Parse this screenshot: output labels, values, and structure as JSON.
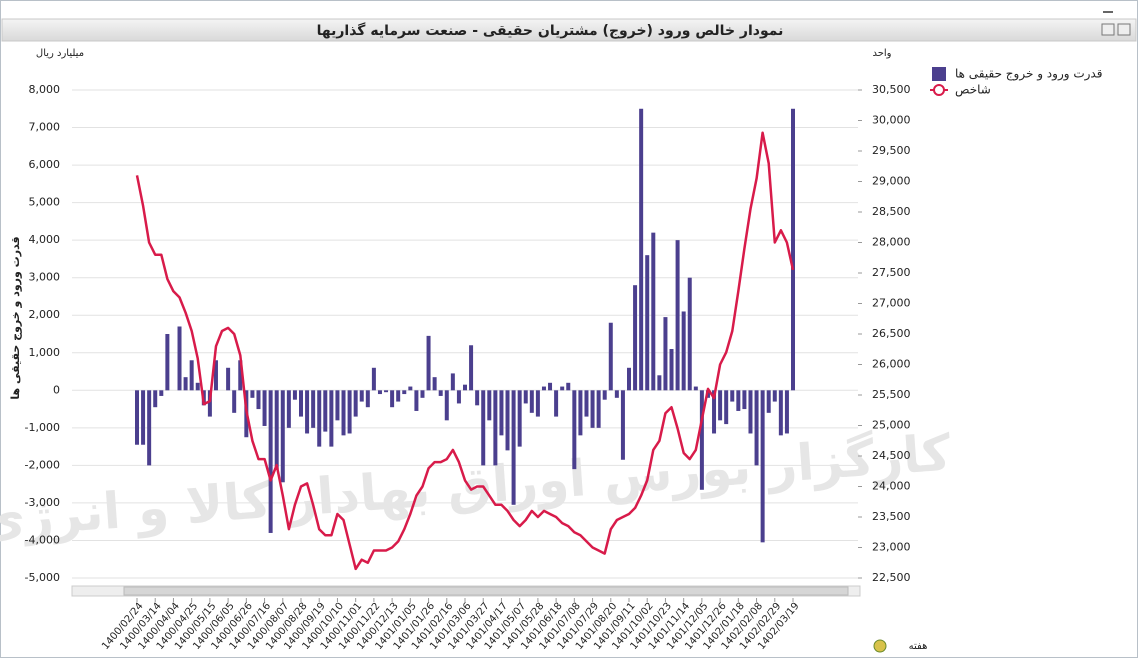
{
  "window": {
    "title": "نمودار خالص ورود (خروج) مشتریان حقیقی - صنعت سرمایه گذاریها"
  },
  "chart_data": {
    "type": "combo",
    "watermark": "کارگزار بورس اوراق بهادار کالا و انرژی",
    "y_unit": "میلیارد ریال",
    "y2_unit": "واحد",
    "y_label": "قدرت ورود و خروج حقیقی ها",
    "x_label": "هفته",
    "categories": [
      "1400/02/24",
      null,
      null,
      "1400/03/14",
      null,
      null,
      "1400/04/04",
      null,
      null,
      "1400/04/25",
      null,
      null,
      "1400/05/15",
      null,
      null,
      "1400/06/05",
      null,
      null,
      "1400/06/26",
      null,
      null,
      "1400/07/16",
      null,
      null,
      "1400/08/07",
      null,
      null,
      "1400/08/28",
      null,
      null,
      "1400/09/19",
      null,
      null,
      "1400/10/10",
      null,
      null,
      "1400/11/01",
      null,
      null,
      "1400/11/22",
      null,
      null,
      "1400/12/13",
      null,
      null,
      "1401/01/05",
      null,
      null,
      "1401/01/26",
      null,
      null,
      "1401/02/16",
      null,
      null,
      "1401/03/06",
      null,
      null,
      "1401/03/27",
      null,
      null,
      "1401/04/17",
      null,
      null,
      "1401/05/07",
      null,
      null,
      "1401/05/28",
      null,
      null,
      "1401/06/18",
      null,
      null,
      "1401/07/08",
      null,
      null,
      "1401/07/29",
      null,
      null,
      "1401/08/20",
      null,
      null,
      "1401/09/11",
      null,
      null,
      "1401/10/02",
      null,
      null,
      "1401/10/23",
      null,
      null,
      "1401/11/14",
      null,
      null,
      "1401/12/05",
      null,
      null,
      "1401/12/26",
      null,
      null,
      "1402/01/18",
      null,
      null,
      "1402/02/08",
      null,
      null,
      "1402/02/29",
      null,
      null,
      "1402/03/19"
    ],
    "series": [
      {
        "name": "قدرت ورود و خروج حقیقی ها",
        "kind": "bar",
        "color": "#4b3f8e",
        "values": [
          -1450,
          -1450,
          -2000,
          -450,
          -150,
          1500,
          0,
          1700,
          350,
          800,
          200,
          -400,
          -700,
          800,
          0,
          600,
          -600,
          800,
          -1250,
          -200,
          -500,
          -950,
          -3800,
          -2100,
          -2450,
          -1000,
          -250,
          -700,
          -1150,
          -1000,
          -1500,
          -1100,
          -1500,
          -800,
          -1200,
          -1150,
          -700,
          -300,
          -450,
          600,
          -100,
          -50,
          -450,
          -300,
          -100,
          100,
          -550,
          -200,
          1450,
          350,
          -150,
          -800,
          450,
          -350,
          150,
          1200,
          -400,
          -2000,
          -800,
          -2000,
          -1200,
          -1600,
          -3050,
          -1500,
          -350,
          -600,
          -700,
          100,
          200,
          -700,
          100,
          200,
          -2100,
          -1200,
          -700,
          -1000,
          -1000,
          -250,
          1800,
          -200,
          -1850,
          600,
          2800,
          7500,
          3600,
          4200,
          400,
          1950,
          1100,
          4000,
          2100,
          3000,
          100,
          -2650,
          -200,
          -1150,
          -800,
          -900,
          -300,
          -550,
          -500,
          -1150,
          -2000,
          -4050,
          -600,
          -300,
          -1200,
          -1150,
          7500
        ]
      },
      {
        "name": "شاخص",
        "kind": "line",
        "axis": "y2",
        "color": "#d81b4a",
        "values": [
          29100,
          28600,
          28000,
          27800,
          27800,
          27400,
          27200,
          27100,
          26850,
          26550,
          26100,
          25350,
          25400,
          26300,
          26550,
          26600,
          26500,
          26150,
          25250,
          24750,
          24450,
          24450,
          24100,
          24350,
          23850,
          23300,
          23700,
          24000,
          24050,
          23700,
          23300,
          23200,
          23200,
          23550,
          23450,
          23050,
          22650,
          22800,
          22750,
          22950,
          22950,
          22950,
          23000,
          23100,
          23300,
          23550,
          23850,
          24000,
          24300,
          24400,
          24400,
          24450,
          24600,
          24400,
          24100,
          23950,
          24000,
          24000,
          23850,
          23700,
          23700,
          23600,
          23450,
          23350,
          23450,
          23600,
          23500,
          23600,
          23550,
          23500,
          23400,
          23350,
          23250,
          23200,
          23100,
          23000,
          22950,
          22900,
          23300,
          23450,
          23500,
          23550,
          23650,
          23850,
          24100,
          24600,
          24750,
          25200,
          25300,
          24950,
          24550,
          24450,
          24600,
          25100,
          25600,
          25450,
          26000,
          26200,
          26550,
          27200,
          27900,
          28550,
          29050,
          29800,
          29300,
          28000,
          28200,
          28000,
          27550
        ]
      }
    ],
    "ylim": [
      -5000,
      8000
    ],
    "yticks": [
      {
        "value": -5000,
        "label": "-5,000"
      },
      {
        "value": -4000,
        "label": "-4,000"
      },
      {
        "value": -3000,
        "label": "-3,000"
      },
      {
        "value": -2000,
        "label": "-2,000"
      },
      {
        "value": -1000,
        "label": "-1,000"
      },
      0,
      {
        "value": 1000,
        "label": "1,000"
      },
      {
        "value": 2000,
        "label": "2,000"
      },
      {
        "value": 3000,
        "label": "3,000"
      },
      {
        "value": 4000,
        "label": "4,000"
      },
      {
        "value": 5000,
        "label": "5,000"
      },
      {
        "value": 6000,
        "label": "6,000"
      },
      {
        "value": 7000,
        "label": "7,000"
      },
      {
        "value": 8000,
        "label": "8,000"
      }
    ],
    "y2lim": [
      22500,
      30500
    ],
    "y2ticks": [
      {
        "value": 22500,
        "label": "22,500"
      },
      {
        "value": 23000,
        "label": "23,000"
      },
      {
        "value": 23500,
        "label": "23,500"
      },
      {
        "value": 24000,
        "label": "24,000"
      },
      {
        "value": 24500,
        "label": "24,500"
      },
      {
        "value": 25000,
        "label": "25,000"
      },
      {
        "value": 25500,
        "label": "25,500"
      },
      {
        "value": 26000,
        "label": "26,000"
      },
      {
        "value": 26500,
        "label": "26,500"
      },
      {
        "value": 27000,
        "label": "27,000"
      },
      {
        "value": 27500,
        "label": "27,500"
      },
      {
        "value": 28000,
        "label": "28,000"
      },
      {
        "value": 28500,
        "label": "28,500"
      },
      {
        "value": 29000,
        "label": "29,000"
      },
      {
        "value": 29500,
        "label": "29,500"
      },
      {
        "value": 30000,
        "label": "30,000"
      },
      {
        "value": 30500,
        "label": "30,500"
      }
    ],
    "grid": true
  }
}
